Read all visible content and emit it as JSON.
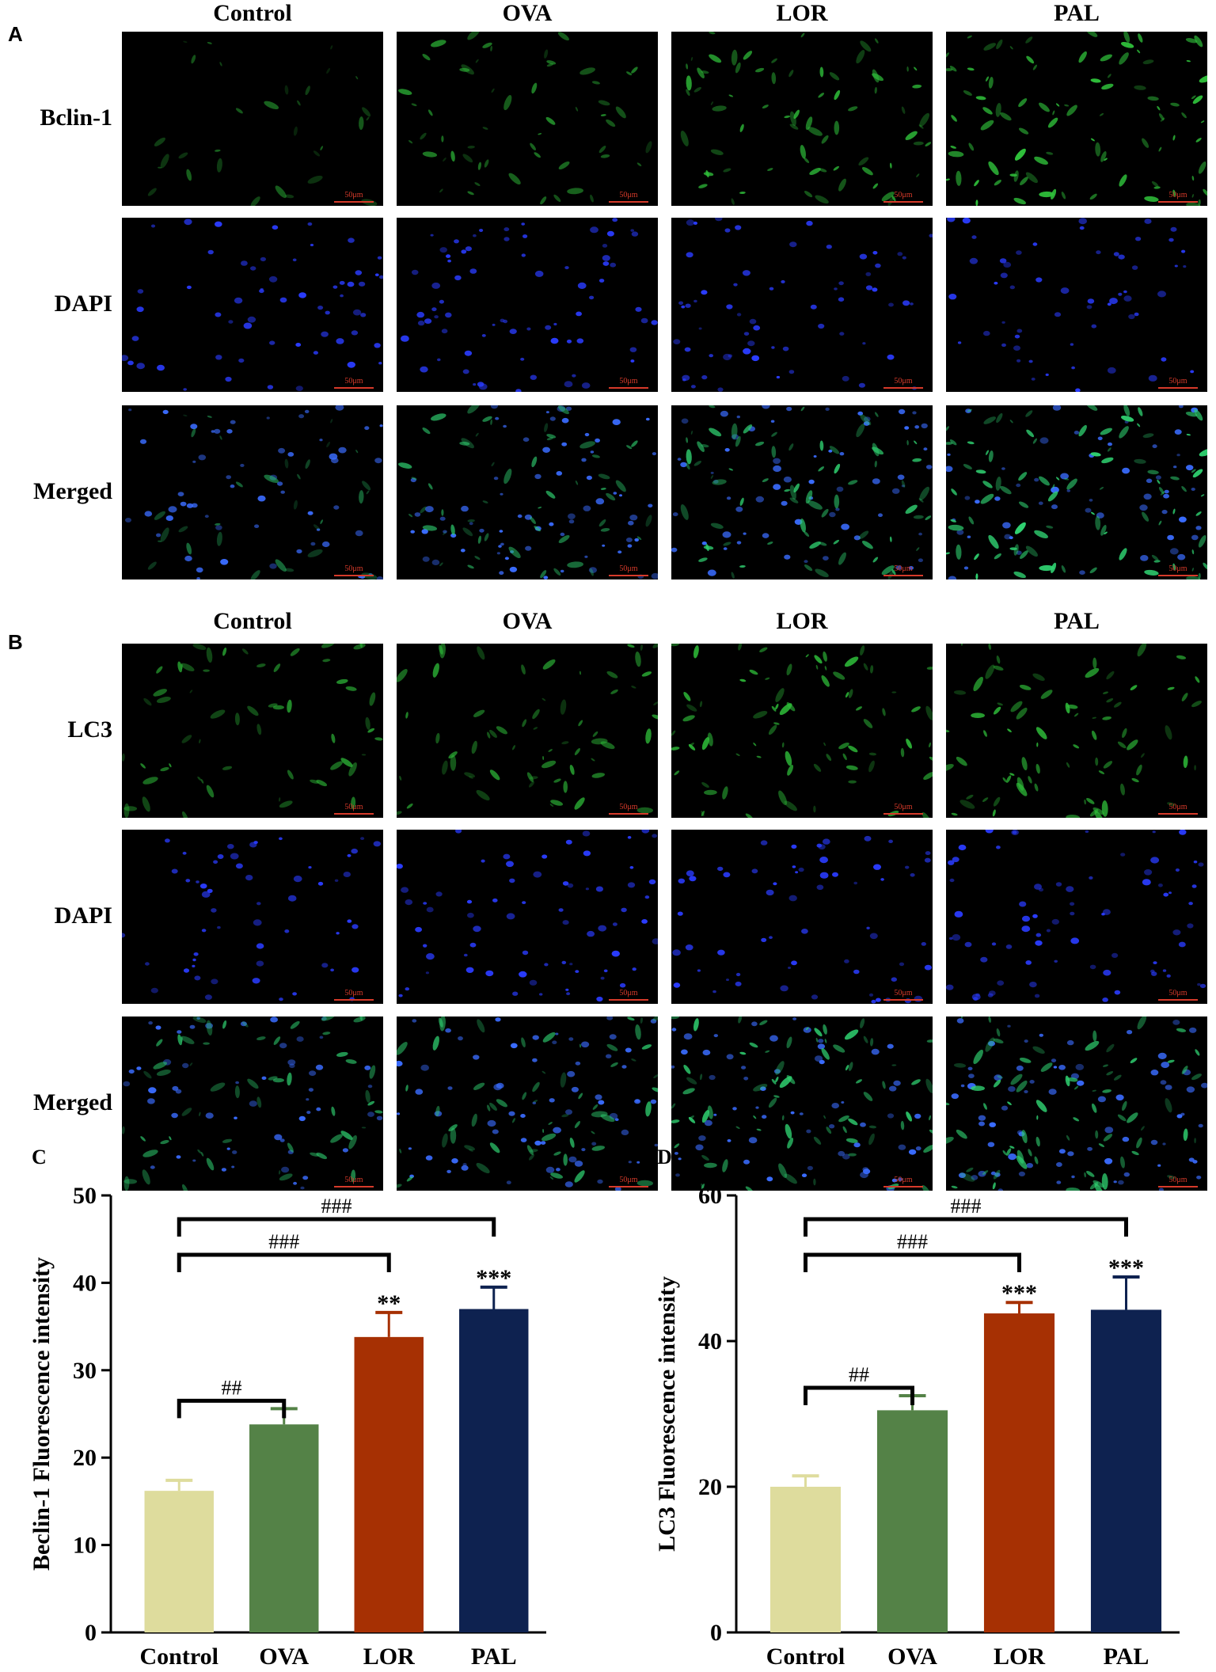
{
  "panels": [
    {
      "letter": "A",
      "columns": [
        "Control",
        "OVA",
        "LOR",
        "PAL"
      ],
      "rows": [
        {
          "label": "Bclin-1",
          "channel": "green"
        },
        {
          "label": "DAPI",
          "channel": "blue"
        },
        {
          "label": "Merged",
          "channel": "merged"
        }
      ],
      "scale_label": "50μm",
      "green_density": [
        0.2,
        0.5,
        0.75,
        1.0
      ]
    },
    {
      "letter": "B",
      "columns": [
        "Control",
        "OVA",
        "LOR",
        "PAL"
      ],
      "rows": [
        {
          "label": "LC3",
          "channel": "green"
        },
        {
          "label": "DAPI",
          "channel": "blue"
        },
        {
          "label": "Merged",
          "channel": "merged"
        }
      ],
      "scale_label": "50μm",
      "green_density": [
        0.55,
        0.6,
        0.8,
        0.8
      ]
    }
  ],
  "chart_data": [
    {
      "letter": "C",
      "type": "bar",
      "categories": [
        "Control",
        "OVA",
        "LOR",
        "PAL"
      ],
      "values": [
        16.2,
        23.8,
        33.8,
        37.0
      ],
      "errors": [
        1.2,
        1.8,
        2.8,
        2.5
      ],
      "colors": [
        "#dedc9d",
        "#548247",
        "#a63003",
        "#0e2250"
      ],
      "ylabel": "Beclin-1 Fluorescence intensity",
      "ylim": [
        0,
        50
      ],
      "yticks": [
        0,
        10,
        20,
        30,
        40,
        50
      ],
      "stars": [
        "",
        "",
        "**",
        "***"
      ],
      "brackets": [
        {
          "from": 0,
          "to": 1,
          "label": "##"
        },
        {
          "from": 0,
          "to": 2,
          "label": "###"
        },
        {
          "from": 0,
          "to": 3,
          "label": "###"
        }
      ]
    },
    {
      "letter": "D",
      "type": "bar",
      "categories": [
        "Control",
        "OVA",
        "LOR",
        "PAL"
      ],
      "values": [
        20.0,
        30.5,
        43.8,
        44.3
      ],
      "errors": [
        1.5,
        2.0,
        1.5,
        4.5
      ],
      "colors": [
        "#dedc9d",
        "#548247",
        "#a63003",
        "#0e2250"
      ],
      "ylabel": "LC3 Fluorescence intensity",
      "ylim": [
        0,
        60
      ],
      "yticks": [
        0,
        20,
        40,
        60
      ],
      "stars": [
        "",
        "",
        "***",
        "***"
      ],
      "brackets": [
        {
          "from": 0,
          "to": 1,
          "label": "##"
        },
        {
          "from": 0,
          "to": 2,
          "label": "###"
        },
        {
          "from": 0,
          "to": 3,
          "label": "###"
        }
      ]
    }
  ]
}
